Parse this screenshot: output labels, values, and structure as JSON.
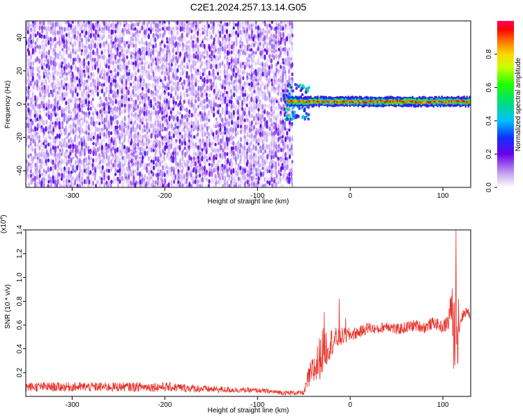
{
  "title": "C2E1.2024.257.13.14.G05",
  "colors": {
    "snr_line": "#e8322a",
    "spectrogram_noise": "#6a00e8",
    "axis": "#000000"
  },
  "chart_data": [
    {
      "type": "heatmap",
      "xlabel": "Height of straight line (km)",
      "ylabel": "Frequency (Hz)",
      "xlim": [
        -350,
        130
      ],
      "ylim": [
        -50,
        50
      ],
      "x_ticks": [
        -300,
        -200,
        -100,
        0,
        100
      ],
      "y_ticks": [
        -40,
        -20,
        0,
        20,
        40
      ],
      "regions": [
        {
          "name": "noise",
          "x_range": [
            -350,
            -63
          ],
          "freq_range": [
            -50,
            50
          ],
          "amplitude_range": [
            0.05,
            0.25
          ]
        },
        {
          "name": "signal",
          "x_range": [
            -72,
            130
          ],
          "freq_center_hz": 1.5,
          "amplitude_range": [
            0.4,
            1.0
          ]
        }
      ],
      "colorbar": {
        "label": "Normalized spectral amplitude",
        "range": [
          0,
          1
        ],
        "ticks": [
          0.0,
          0.2,
          0.4,
          0.6,
          0.8
        ],
        "tick_labels": [
          "0.0",
          "0.2",
          "0.4",
          "0.6",
          "0.8"
        ]
      }
    },
    {
      "type": "line",
      "xlabel": "Height of straight line (km)",
      "ylabel": "SNR (10 * v/v)",
      "y_multiplier": "(x10",
      "y_multiplier_exp": "4",
      "xlim": [
        -350,
        130
      ],
      "ylim": [
        0,
        1.4
      ],
      "x_ticks": [
        -300,
        -200,
        -100,
        0,
        100
      ],
      "y_ticks": [
        0.2,
        0.4,
        0.6,
        0.8,
        1.0,
        1.2,
        1.4
      ],
      "y_tick_labels": [
        "0.2",
        "0.4",
        "0.6",
        "0.8",
        "1.0",
        "1.2",
        "1.4"
      ],
      "series": [
        {
          "x": [
            -350,
            -300,
            -250,
            -200,
            -150,
            -100,
            -70,
            -50,
            -45,
            -35,
            -30,
            -25,
            -20,
            -10,
            0,
            10,
            20,
            30,
            40,
            50,
            60,
            70,
            80,
            90,
            100,
            105,
            110,
            112,
            115,
            118,
            120,
            125,
            130
          ],
          "y": [
            0.08,
            0.08,
            0.08,
            0.08,
            0.06,
            0.05,
            0.03,
            0.03,
            0.15,
            0.28,
            0.38,
            0.42,
            0.46,
            0.5,
            0.52,
            0.54,
            0.58,
            0.56,
            0.6,
            0.56,
            0.58,
            0.6,
            0.58,
            0.62,
            0.58,
            0.62,
            0.72,
            0.45,
            0.8,
            0.62,
            0.66,
            0.72,
            0.68
          ],
          "noise": [
            0.04,
            0.04,
            0.04,
            0.04,
            0.03,
            0.02,
            0.02,
            0.02,
            0.1,
            0.18,
            0.2,
            0.16,
            0.12,
            0.08,
            0.06,
            0.05,
            0.05,
            0.04,
            0.05,
            0.05,
            0.05,
            0.05,
            0.05,
            0.05,
            0.05,
            0.08,
            0.2,
            0.3,
            0.35,
            0.15,
            0.05,
            0.04,
            0.04
          ],
          "spikes": [
            [
              -28,
              0.71
            ],
            [
              -12,
              0.82
            ],
            [
              -5,
              0.66
            ],
            [
              108,
              0.82
            ],
            [
              114,
              1.4
            ],
            [
              116,
              0.28
            ]
          ]
        }
      ]
    }
  ]
}
